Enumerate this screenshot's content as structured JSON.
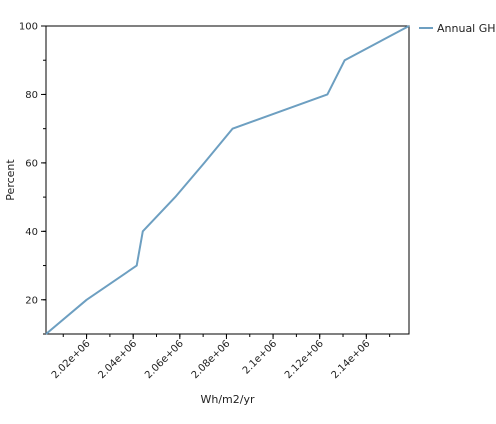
{
  "chart_data": {
    "type": "line",
    "xlabel": "Wh/m2/yr",
    "ylabel": "Percent",
    "xlim": [
      2002600,
      2158300
    ],
    "ylim": [
      10,
      100
    ],
    "x_ticks": [
      {
        "value": 2020000,
        "label": "2.02e+06"
      },
      {
        "value": 2040000,
        "label": "2.04e+06"
      },
      {
        "value": 2060000,
        "label": "2.06e+06"
      },
      {
        "value": 2080000,
        "label": "2.08e+06"
      },
      {
        "value": 2100000,
        "label": "2.1e+06"
      },
      {
        "value": 2120000,
        "label": "2.12e+06"
      },
      {
        "value": 2140000,
        "label": "2.14e+06"
      }
    ],
    "y_ticks": [
      {
        "value": 20,
        "label": "20"
      },
      {
        "value": 40,
        "label": "40"
      },
      {
        "value": 60,
        "label": "60"
      },
      {
        "value": 80,
        "label": "80"
      },
      {
        "value": 100,
        "label": "100"
      }
    ],
    "legend": "top-right",
    "grid": false,
    "series": [
      {
        "name": "Annual GHI",
        "color": "#6d9fc1",
        "x": [
          2002600,
          2020000,
          2041500,
          2044100,
          2058000,
          2070500,
          2082600,
          2123300,
          2130700,
          2158300
        ],
        "y": [
          10,
          20,
          30,
          40,
          50,
          60,
          70,
          80,
          90,
          100
        ]
      }
    ]
  }
}
